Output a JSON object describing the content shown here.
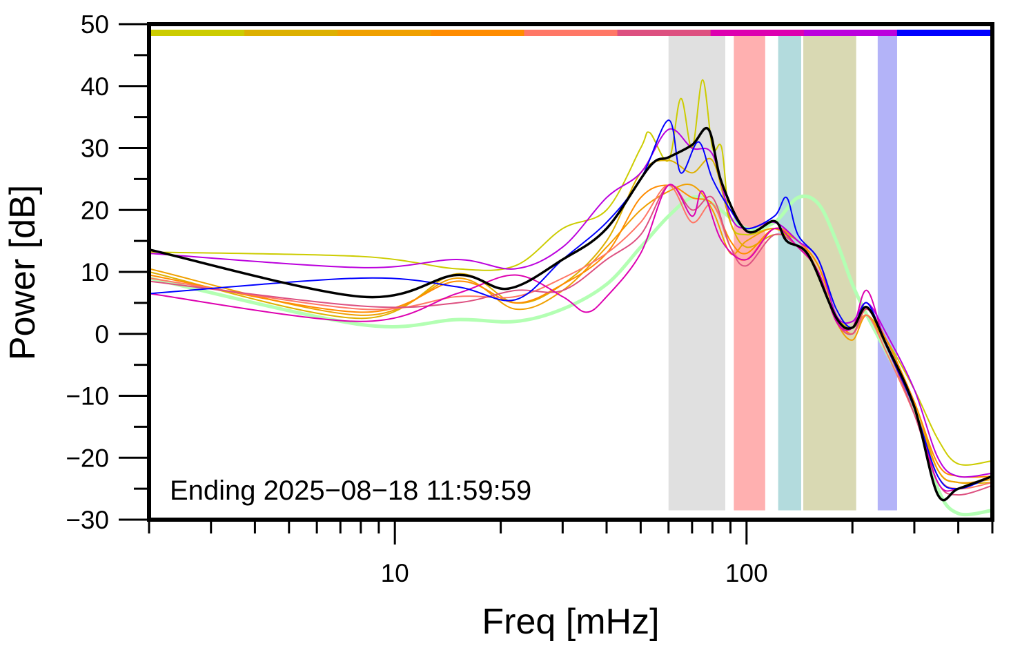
{
  "chart_data": {
    "type": "line",
    "title": "",
    "xlabel": "Freq [mHz]",
    "ylabel": "Power [dB]",
    "xscale": "log",
    "xlim": [
      2,
      500
    ],
    "ylim": [
      -30,
      50
    ],
    "grid": false,
    "x_tick_labels": [
      {
        "value": 10,
        "label": "10"
      },
      {
        "value": 100,
        "label": "100"
      }
    ],
    "y_tick_labels": [
      {
        "value": 50,
        "label": "50"
      },
      {
        "value": 40,
        "label": "40"
      },
      {
        "value": 30,
        "label": "30"
      },
      {
        "value": 20,
        "label": "20"
      },
      {
        "value": 10,
        "label": "10"
      },
      {
        "value": 0,
        "label": "0"
      },
      {
        "value": -10,
        "label": "−10"
      },
      {
        "value": -20,
        "label": "−20"
      },
      {
        "value": -30,
        "label": "−30"
      }
    ],
    "annotation": "Ending 2025−08−18 11:59:59",
    "top_color_bar": [
      "#cccc00",
      "#ddb000",
      "#f0a000",
      "#ff8c00",
      "#ff7766",
      "#dd5080",
      "#dd00b0",
      "#bb00dd",
      "#0000ff"
    ],
    "bands": [
      {
        "from": 60,
        "to": 87,
        "color": "#e0e0e0"
      },
      {
        "from": 92,
        "to": 113,
        "color": "#ffb0b0"
      },
      {
        "from": 123,
        "to": 143,
        "color": "#b3dbdd"
      },
      {
        "from": 145,
        "to": 205,
        "color": "#d9d9b3"
      },
      {
        "from": 236,
        "to": 268,
        "color": "#b3b3f8"
      }
    ],
    "series": [
      {
        "color": "#b3ffb3",
        "width": 5,
        "x": [
          2,
          8,
          15,
          22,
          30,
          40,
          50,
          60,
          70,
          80,
          100,
          120,
          140,
          160,
          180,
          200,
          220,
          250,
          300,
          350,
          400,
          500
        ],
        "y": [
          9,
          1.5,
          2.3,
          2,
          4,
          8,
          14,
          19,
          22,
          21,
          17,
          18,
          22,
          21,
          15,
          8,
          3,
          -3,
          -12,
          -25,
          -29,
          -28.5
        ]
      },
      {
        "color": "#cccc00",
        "width": 2,
        "x": [
          2,
          8,
          15,
          22,
          30,
          40,
          50,
          53,
          60,
          65,
          70,
          75,
          80,
          85,
          90,
          100,
          120,
          140,
          160,
          180,
          200,
          220,
          250,
          300,
          350,
          400,
          500
        ],
        "y": [
          13.2,
          12.5,
          10.5,
          11,
          17,
          20,
          30,
          32.5,
          28,
          38,
          30,
          41,
          30,
          30,
          18,
          16,
          17,
          15,
          11,
          3,
          1,
          3,
          -1,
          -9,
          -17,
          -21,
          -20.5
        ]
      },
      {
        "color": "#ddb000",
        "width": 2,
        "x": [
          2,
          8,
          15,
          22,
          30,
          40,
          50,
          60,
          70,
          80,
          90,
          100,
          120,
          140,
          160,
          180,
          200,
          220,
          250,
          300,
          350,
          400,
          500
        ],
        "y": [
          10,
          2.5,
          9.7,
          5,
          8,
          15,
          26,
          28,
          26,
          28,
          18,
          14,
          16,
          15,
          10,
          2,
          0,
          3,
          -2,
          -11,
          -22,
          -24,
          -24
        ]
      },
      {
        "color": "#f0a000",
        "width": 2,
        "x": [
          2,
          8,
          15,
          22,
          30,
          40,
          50,
          60,
          70,
          80,
          90,
          100,
          120,
          140,
          160,
          180,
          200,
          220,
          250,
          300,
          350,
          400,
          500
        ],
        "y": [
          10.5,
          3,
          9,
          4,
          7,
          14,
          20,
          23,
          24,
          20,
          13,
          15,
          17,
          14,
          10,
          2,
          -1,
          3,
          -2,
          -12,
          -22,
          -24,
          -23.5
        ]
      },
      {
        "color": "#ff8c00",
        "width": 2,
        "x": [
          2,
          8,
          15,
          22,
          30,
          40,
          50,
          60,
          70,
          80,
          90,
          100,
          120,
          140,
          160,
          180,
          200,
          220,
          250,
          300,
          350,
          400,
          500
        ],
        "y": [
          9.5,
          3.5,
          8.5,
          5,
          8,
          13,
          22,
          24,
          22,
          21,
          15,
          13,
          17,
          15,
          11,
          3,
          0,
          4,
          -1,
          -11,
          -21,
          -23,
          -23
        ]
      },
      {
        "color": "#ff7766",
        "width": 2,
        "x": [
          2,
          8,
          15,
          22,
          30,
          40,
          50,
          60,
          70,
          80,
          90,
          100,
          120,
          140,
          160,
          180,
          200,
          220,
          250,
          300,
          350,
          400,
          500
        ],
        "y": [
          9,
          4,
          6,
          6,
          9,
          13,
          18,
          24,
          18,
          21,
          14,
          12,
          17,
          15,
          10,
          2,
          0,
          3,
          -3,
          -13,
          -23,
          -25,
          -24
        ]
      },
      {
        "color": "#dd5080",
        "width": 2,
        "x": [
          2,
          8,
          15,
          22,
          30,
          40,
          50,
          60,
          70,
          80,
          90,
          100,
          120,
          140,
          160,
          180,
          200,
          220,
          250,
          300,
          350,
          400,
          500
        ],
        "y": [
          8.5,
          4.5,
          5,
          7,
          7,
          12,
          16,
          24,
          20,
          22,
          14,
          11,
          16,
          14,
          10,
          2,
          0,
          4,
          -2,
          -13,
          -24,
          -26,
          -24.5
        ]
      },
      {
        "color": "#dd00b0",
        "width": 2,
        "x": [
          2,
          8,
          15,
          22,
          30,
          35,
          40,
          50,
          60,
          70,
          75,
          85,
          100,
          120,
          140,
          160,
          180,
          200,
          220,
          250,
          300,
          350,
          400,
          500
        ],
        "y": [
          6.5,
          2,
          6.5,
          9.5,
          6,
          3.5,
          6,
          13,
          24,
          19,
          23,
          15,
          12,
          17,
          14,
          10,
          2,
          1,
          7,
          -2,
          -12,
          -24,
          -25,
          -23
        ]
      },
      {
        "color": "#bb00dd",
        "width": 2,
        "x": [
          2,
          8,
          15,
          22,
          30,
          40,
          50,
          60,
          70,
          80,
          90,
          100,
          120,
          140,
          160,
          180,
          200,
          220,
          250,
          300,
          350,
          400,
          500
        ],
        "y": [
          13,
          10.7,
          12,
          10.5,
          14,
          22,
          26,
          33,
          30,
          29,
          19,
          17,
          18,
          15,
          12,
          3,
          2,
          5,
          0,
          -9,
          -20,
          -23,
          -22.5
        ]
      },
      {
        "color": "#0000ff",
        "width": 2,
        "x": [
          2,
          8,
          15,
          22,
          30,
          40,
          50,
          60,
          65,
          73,
          80,
          90,
          100,
          120,
          130,
          140,
          160,
          180,
          200,
          220,
          250,
          300,
          350,
          400,
          500
        ],
        "y": [
          6.5,
          9,
          7.6,
          5.5,
          12,
          18,
          25,
          34.5,
          26,
          31,
          25,
          20,
          17,
          19,
          22,
          16,
          12,
          4,
          1,
          5,
          -2,
          -12,
          -23,
          -25,
          -23
        ]
      },
      {
        "color": "#000000",
        "width": 3.5,
        "x": [
          2,
          8,
          15,
          21,
          30,
          40,
          53,
          60,
          70,
          78,
          85,
          100,
          120,
          130,
          150,
          180,
          200,
          220,
          250,
          300,
          350,
          400,
          500
        ],
        "y": [
          13.6,
          6,
          9.5,
          7.3,
          12,
          17,
          27,
          28.5,
          30.5,
          33,
          24.4,
          16.6,
          18.2,
          15,
          12.7,
          2.6,
          1,
          4.3,
          -1.8,
          -11.8,
          -26,
          -25,
          -23
        ]
      }
    ]
  }
}
